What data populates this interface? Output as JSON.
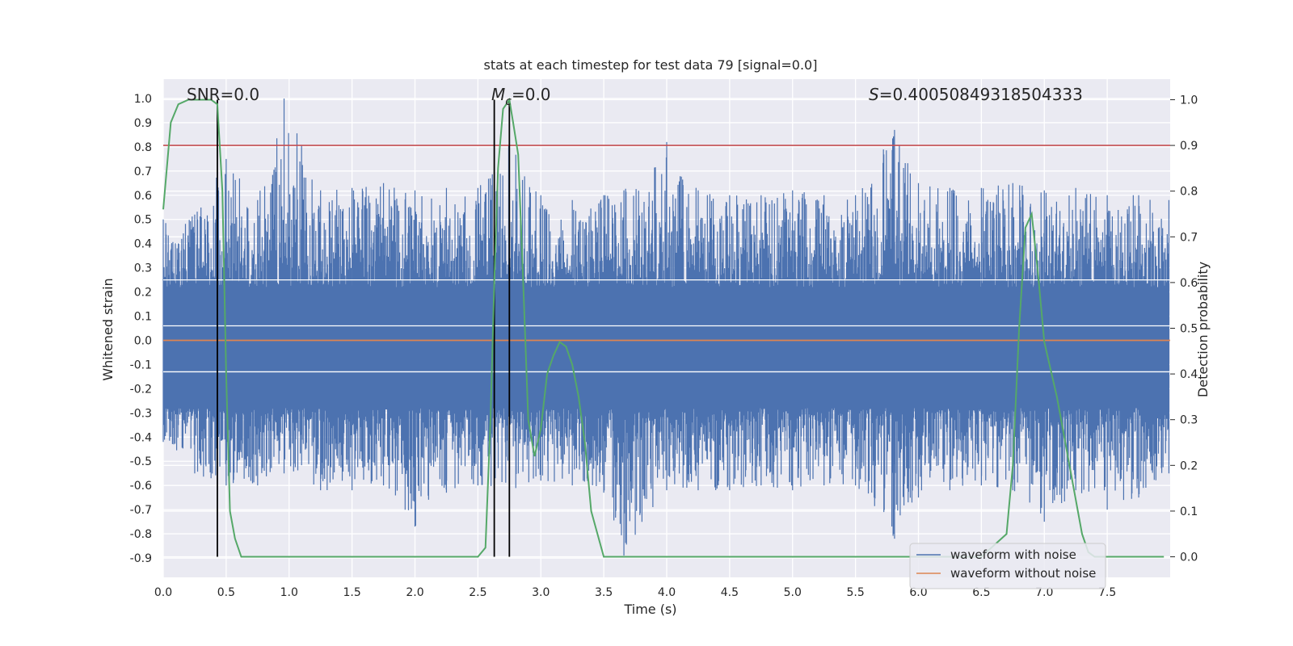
{
  "chart_data": {
    "type": "line",
    "title": "stats at each timestep for test data 79 [signal=0.0]",
    "xlabel": "Time (s)",
    "ylabel": "Whitened strain",
    "y2label": "Detection probability",
    "xlim": [
      0.0,
      8.0
    ],
    "ylim": [
      -0.98,
      1.08
    ],
    "y2lim": [
      -0.045,
      1.045
    ],
    "x_ticks": [
      "0.0",
      "0.5",
      "1.0",
      "1.5",
      "2.0",
      "2.5",
      "3.0",
      "3.5",
      "4.0",
      "4.5",
      "5.0",
      "5.5",
      "6.0",
      "6.5",
      "7.0",
      "7.5"
    ],
    "y_ticks": [
      "1.0",
      "0.9",
      "0.8",
      "0.7",
      "0.6",
      "0.5",
      "0.4",
      "0.3",
      "0.2",
      "0.1",
      "0.0",
      "-0.1",
      "-0.2",
      "-0.3",
      "-0.4",
      "-0.5",
      "-0.6",
      "-0.7",
      "-0.8",
      "-0.9"
    ],
    "y2_ticks": [
      "1.0",
      "0.9",
      "0.8",
      "0.7",
      "0.6",
      "0.5",
      "0.4",
      "0.3",
      "0.2",
      "0.1",
      "0.0"
    ],
    "grid": true,
    "legend_position": "bottom-right",
    "annotations": {
      "snr": "SNR=0.0",
      "mc_symbol": "M",
      "mc_subscript": "c",
      "mc_value": "=0.0",
      "s_symbol": "S",
      "s_value": "=0.40050849318504333"
    },
    "threshold_y2": 0.9,
    "vlines_x": [
      0.43,
      2.63,
      2.75
    ],
    "series": [
      {
        "name": "waveform with noise",
        "color": "#4c72b0",
        "axis": "left",
        "envelope": {
          "x": [
            0.0,
            0.25,
            0.5,
            0.75,
            0.96,
            1.25,
            1.5,
            1.75,
            2.0,
            2.25,
            2.5,
            2.75,
            3.0,
            3.25,
            3.5,
            3.66,
            4.0,
            4.25,
            4.5,
            4.75,
            5.0,
            5.25,
            5.5,
            5.81,
            6.0,
            6.25,
            6.5,
            6.75,
            7.0,
            7.25,
            7.5,
            7.75,
            7.99
          ],
          "upper": [
            0.5,
            0.52,
            0.75,
            0.58,
            1.0,
            0.62,
            0.63,
            0.65,
            0.62,
            0.63,
            0.63,
            0.83,
            0.6,
            0.58,
            0.6,
            0.62,
            0.82,
            0.62,
            0.6,
            0.6,
            0.62,
            0.6,
            0.6,
            0.87,
            0.65,
            0.63,
            0.63,
            0.65,
            0.62,
            0.63,
            0.6,
            0.6,
            0.58
          ],
          "lower": [
            -0.42,
            -0.55,
            -0.6,
            -0.6,
            -0.55,
            -0.62,
            -0.62,
            -0.6,
            -0.77,
            -0.63,
            -0.6,
            -0.62,
            -0.58,
            -0.6,
            -0.63,
            -0.89,
            -0.62,
            -0.62,
            -0.62,
            -0.6,
            -0.62,
            -0.6,
            -0.6,
            -0.82,
            -0.65,
            -0.62,
            -0.6,
            -0.62,
            -0.75,
            -0.62,
            -0.7,
            -0.65,
            -0.55
          ]
        }
      },
      {
        "name": "waveform without noise",
        "color": "#dd8452",
        "axis": "left",
        "x": [
          0.0,
          8.0
        ],
        "y": [
          0.0,
          0.0
        ]
      },
      {
        "name": "",
        "color": "#55a868",
        "axis": "right",
        "x": [
          0.0,
          0.06,
          0.12,
          0.2,
          0.3,
          0.38,
          0.43,
          0.47,
          0.5,
          0.53,
          0.57,
          0.62,
          1.0,
          1.5,
          2.0,
          2.3,
          2.5,
          2.56,
          2.6,
          2.63,
          2.66,
          2.7,
          2.75,
          2.78,
          2.82,
          2.86,
          2.9,
          2.95,
          3.0,
          3.05,
          3.1,
          3.15,
          3.2,
          3.25,
          3.3,
          3.35,
          3.4,
          3.45,
          3.5,
          4.0,
          4.5,
          5.0,
          5.5,
          6.0,
          6.5,
          6.7,
          6.75,
          6.8,
          6.85,
          6.9,
          6.95,
          7.0,
          7.1,
          7.2,
          7.3,
          7.35,
          7.4,
          7.5,
          7.95
        ],
        "y": [
          0.76,
          0.95,
          0.99,
          1.0,
          1.0,
          1.0,
          0.99,
          0.8,
          0.4,
          0.1,
          0.04,
          0.0,
          0.0,
          0.0,
          0.0,
          0.0,
          0.0,
          0.02,
          0.3,
          0.6,
          0.85,
          0.98,
          1.0,
          0.95,
          0.88,
          0.6,
          0.3,
          0.22,
          0.28,
          0.4,
          0.44,
          0.47,
          0.46,
          0.42,
          0.35,
          0.25,
          0.1,
          0.05,
          0.0,
          0.0,
          0.0,
          0.0,
          0.0,
          0.0,
          0.0,
          0.05,
          0.2,
          0.5,
          0.72,
          0.75,
          0.62,
          0.47,
          0.35,
          0.2,
          0.05,
          0.01,
          0.0,
          0.0,
          0.0
        ]
      }
    ]
  }
}
